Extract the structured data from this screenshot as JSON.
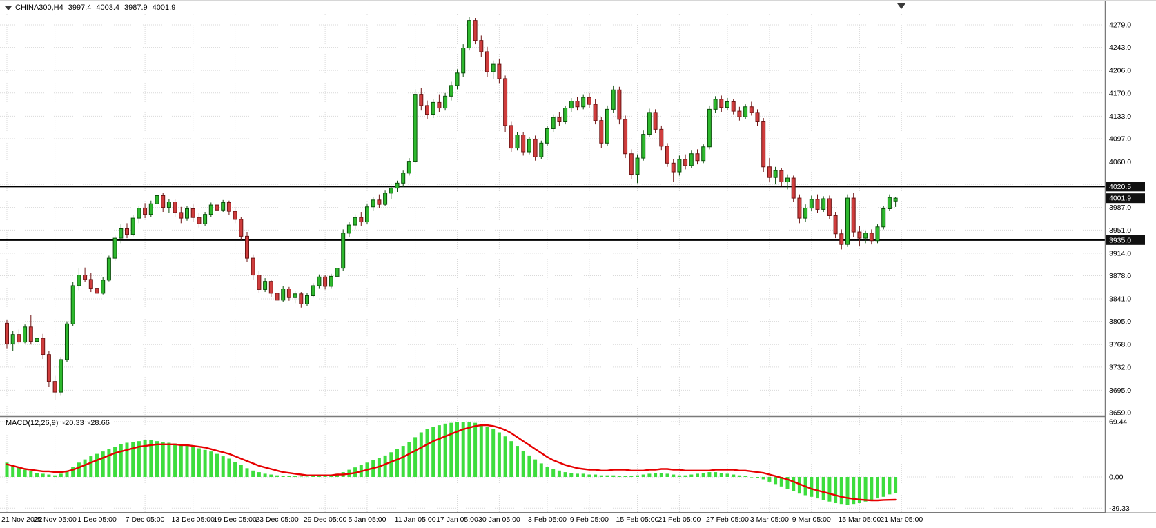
{
  "header": {
    "symbol": "CHINA300,H4",
    "open": "3997.4",
    "high": "4003.4",
    "low": "3987.9",
    "close": "4001.9"
  },
  "macd_panel": {
    "label": "MACD(12,26,9)",
    "main_value": "-20.33",
    "signal_value": "-28.66",
    "ticks": [
      {
        "value": 69.44,
        "label": "69.44"
      },
      {
        "value": 0,
        "label": "0.00"
      },
      {
        "value": -39.33,
        "label": "-39.33"
      }
    ]
  },
  "price_axis": {
    "ticks": [
      {
        "value": 4279,
        "label": "4279.0"
      },
      {
        "value": 4243,
        "label": "4243.0"
      },
      {
        "value": 4206,
        "label": "4206.0"
      },
      {
        "value": 4170,
        "label": "4170.0"
      },
      {
        "value": 4133,
        "label": "4133.0"
      },
      {
        "value": 4097,
        "label": "4097.0"
      },
      {
        "value": 4060,
        "label": "4060.0"
      },
      {
        "value": 4024,
        "label": ""
      },
      {
        "value": 3987,
        "label": "3987.0"
      },
      {
        "value": 3951,
        "label": "3951.0"
      },
      {
        "value": 3914,
        "label": "3914.0"
      },
      {
        "value": 3878,
        "label": "3878.0"
      },
      {
        "value": 3841,
        "label": "3841.0"
      },
      {
        "value": 3805,
        "label": "3805.0"
      },
      {
        "value": 3768,
        "label": "3768.0"
      },
      {
        "value": 3732,
        "label": "3732.0"
      },
      {
        "value": 3695,
        "label": "3695.0"
      },
      {
        "value": 3659,
        "label": "3659.0"
      }
    ],
    "badges": [
      {
        "value": 4020.5,
        "label": "4020.5",
        "type": "hline"
      },
      {
        "value": 4001.9,
        "label": "4001.9",
        "type": "last-price"
      },
      {
        "value": 3935.0,
        "label": "3935.0",
        "type": "hline"
      }
    ]
  },
  "colors": {
    "bull_fill": "#2eb82e",
    "bull_stroke": "#0b4f0b",
    "bear_fill": "#cf3d3d",
    "bear_stroke": "#6e1414",
    "hist": "#3ddd3d",
    "signal": "#e60000",
    "grid": "#d9d9d9",
    "hline": "#000000",
    "badge_bg": "#111111",
    "badge_text": "#ffffff",
    "axis_text": "#000000",
    "separator": "#7a7a7a"
  },
  "chart_data": {
    "type": "candlestick",
    "symbol": "CHINA300",
    "timeframe": "H4",
    "price_axis_range": [
      3659.0,
      4279.0
    ],
    "horizontal_lines": [
      4020.5,
      3935.0
    ],
    "last_price": 4001.9,
    "ohlc": [
      [
        3802,
        3808,
        3762,
        3769
      ],
      [
        3769,
        3790,
        3758,
        3784
      ],
      [
        3784,
        3792,
        3768,
        3772
      ],
      [
        3772,
        3800,
        3770,
        3796
      ],
      [
        3796,
        3815,
        3768,
        3773
      ],
      [
        3773,
        3782,
        3752,
        3778
      ],
      [
        3778,
        3785,
        3745,
        3752
      ],
      [
        3752,
        3758,
        3700,
        3709
      ],
      [
        3709,
        3718,
        3679,
        3692
      ],
      [
        3692,
        3748,
        3686,
        3744
      ],
      [
        3744,
        3805,
        3740,
        3801
      ],
      [
        3801,
        3868,
        3798,
        3862
      ],
      [
        3862,
        3890,
        3855,
        3879
      ],
      [
        3879,
        3891,
        3868,
        3872
      ],
      [
        3872,
        3882,
        3852,
        3858
      ],
      [
        3858,
        3866,
        3843,
        3850
      ],
      [
        3850,
        3876,
        3848,
        3871
      ],
      [
        3871,
        3910,
        3869,
        3906
      ],
      [
        3906,
        3942,
        3902,
        3938
      ],
      [
        3938,
        3960,
        3930,
        3953
      ],
      [
        3953,
        3962,
        3938,
        3944
      ],
      [
        3944,
        3975,
        3941,
        3970
      ],
      [
        3970,
        3990,
        3962,
        3986
      ],
      [
        3986,
        3994,
        3970,
        3976
      ],
      [
        3976,
        3998,
        3972,
        3993
      ],
      [
        3993,
        4013,
        3985,
        4006
      ],
      [
        4006,
        4010,
        3980,
        3987
      ],
      [
        3987,
        4000,
        3978,
        3996
      ],
      [
        3996,
        4001,
        3972,
        3979
      ],
      [
        3979,
        3988,
        3962,
        3970
      ],
      [
        3970,
        3989,
        3966,
        3985
      ],
      [
        3985,
        3992,
        3964,
        3971
      ],
      [
        3971,
        3978,
        3955,
        3961
      ],
      [
        3961,
        3980,
        3958,
        3976
      ],
      [
        3976,
        3995,
        3972,
        3991
      ],
      [
        3991,
        3997,
        3978,
        3983
      ],
      [
        3983,
        3999,
        3980,
        3995
      ],
      [
        3995,
        3998,
        3975,
        3981
      ],
      [
        3981,
        3988,
        3962,
        3968
      ],
      [
        3968,
        3972,
        3935,
        3941
      ],
      [
        3941,
        3948,
        3900,
        3906
      ],
      [
        3906,
        3912,
        3872,
        3879
      ],
      [
        3879,
        3886,
        3850,
        3856
      ],
      [
        3856,
        3874,
        3852,
        3869
      ],
      [
        3869,
        3872,
        3844,
        3850
      ],
      [
        3850,
        3856,
        3826,
        3839
      ],
      [
        3839,
        3862,
        3836,
        3857
      ],
      [
        3857,
        3860,
        3838,
        3843
      ],
      [
        3843,
        3853,
        3834,
        3849
      ],
      [
        3849,
        3852,
        3827,
        3833
      ],
      [
        3833,
        3850,
        3830,
        3846
      ],
      [
        3846,
        3866,
        3843,
        3862
      ],
      [
        3862,
        3880,
        3858,
        3876
      ],
      [
        3876,
        3879,
        3856,
        3861
      ],
      [
        3861,
        3881,
        3858,
        3877
      ],
      [
        3877,
        3895,
        3870,
        3890
      ],
      [
        3890,
        3952,
        3886,
        3946
      ],
      [
        3946,
        3964,
        3940,
        3959
      ],
      [
        3959,
        3976,
        3952,
        3971
      ],
      [
        3971,
        3980,
        3958,
        3964
      ],
      [
        3964,
        3992,
        3960,
        3988
      ],
      [
        3988,
        4004,
        3982,
        3999
      ],
      [
        3999,
        4008,
        3986,
        3992
      ],
      [
        3992,
        4014,
        3989,
        4010
      ],
      [
        4010,
        4022,
        4000,
        4018
      ],
      [
        4018,
        4030,
        4012,
        4026
      ],
      [
        4026,
        4046,
        4020,
        4042
      ],
      [
        4042,
        4066,
        4038,
        4061
      ],
      [
        4061,
        4176,
        4058,
        4168
      ],
      [
        4168,
        4178,
        4142,
        4150
      ],
      [
        4150,
        4158,
        4128,
        4136
      ],
      [
        4136,
        4160,
        4130,
        4155
      ],
      [
        4155,
        4168,
        4140,
        4146
      ],
      [
        4146,
        4170,
        4142,
        4165
      ],
      [
        4165,
        4188,
        4158,
        4182
      ],
      [
        4182,
        4208,
        4176,
        4202
      ],
      [
        4202,
        4248,
        4196,
        4242
      ],
      [
        4242,
        4292,
        4238,
        4286
      ],
      [
        4286,
        4290,
        4248,
        4254
      ],
      [
        4254,
        4262,
        4228,
        4236
      ],
      [
        4236,
        4244,
        4196,
        4204
      ],
      [
        4204,
        4222,
        4192,
        4216
      ],
      [
        4216,
        4224,
        4186,
        4193
      ],
      [
        4193,
        4198,
        4108,
        4118
      ],
      [
        4118,
        4124,
        4076,
        4082
      ],
      [
        4082,
        4108,
        4078,
        4103
      ],
      [
        4103,
        4108,
        4070,
        4076
      ],
      [
        4076,
        4100,
        4072,
        4096
      ],
      [
        4096,
        4102,
        4062,
        4068
      ],
      [
        4068,
        4094,
        4064,
        4090
      ],
      [
        4090,
        4118,
        4086,
        4113
      ],
      [
        4113,
        4136,
        4108,
        4131
      ],
      [
        4131,
        4140,
        4118,
        4124
      ],
      [
        4124,
        4150,
        4120,
        4146
      ],
      [
        4146,
        4162,
        4140,
        4157
      ],
      [
        4157,
        4164,
        4142,
        4148
      ],
      [
        4148,
        4168,
        4144,
        4163
      ],
      [
        4163,
        4170,
        4146,
        4152
      ],
      [
        4152,
        4160,
        4120,
        4126
      ],
      [
        4126,
        4132,
        4082,
        4090
      ],
      [
        4090,
        4150,
        4086,
        4144
      ],
      [
        4144,
        4182,
        4138,
        4175
      ],
      [
        4175,
        4180,
        4120,
        4128
      ],
      [
        4128,
        4134,
        4066,
        4073
      ],
      [
        4073,
        4080,
        4032,
        4040
      ],
      [
        4040,
        4072,
        4026,
        4066
      ],
      [
        4066,
        4110,
        4062,
        4104
      ],
      [
        4104,
        4145,
        4100,
        4139
      ],
      [
        4139,
        4144,
        4106,
        4112
      ],
      [
        4112,
        4118,
        4078,
        4085
      ],
      [
        4085,
        4090,
        4052,
        4058
      ],
      [
        4058,
        4064,
        4028,
        4044
      ],
      [
        4044,
        4070,
        4038,
        4064
      ],
      [
        4064,
        4072,
        4048,
        4054
      ],
      [
        4054,
        4078,
        4050,
        4073
      ],
      [
        4073,
        4080,
        4056,
        4062
      ],
      [
        4062,
        4088,
        4058,
        4084
      ],
      [
        4084,
        4150,
        4080,
        4144
      ],
      [
        4144,
        4165,
        4138,
        4160
      ],
      [
        4160,
        4166,
        4140,
        4147
      ],
      [
        4147,
        4162,
        4142,
        4156
      ],
      [
        4156,
        4160,
        4136,
        4141
      ],
      [
        4141,
        4148,
        4126,
        4132
      ],
      [
        4132,
        4152,
        4128,
        4148
      ],
      [
        4148,
        4156,
        4134,
        4139
      ],
      [
        4139,
        4144,
        4118,
        4124
      ],
      [
        4124,
        4130,
        4044,
        4052
      ],
      [
        4052,
        4066,
        4028,
        4035
      ],
      [
        4035,
        4052,
        4024,
        4046
      ],
      [
        4046,
        4050,
        4022,
        4028
      ],
      [
        4028,
        4040,
        4016,
        4034
      ],
      [
        4034,
        4038,
        3996,
        4002
      ],
      [
        4002,
        4008,
        3962,
        3970
      ],
      [
        3970,
        3992,
        3964,
        3986
      ],
      [
        3986,
        4006,
        3982,
        4000
      ],
      [
        4000,
        4008,
        3978,
        3984
      ],
      [
        3984,
        4005,
        3980,
        4001
      ],
      [
        4001,
        4006,
        3968,
        3974
      ],
      [
        3974,
        3980,
        3938,
        3945
      ],
      [
        3945,
        3952,
        3920,
        3928
      ],
      [
        3928,
        4008,
        3924,
        4002
      ],
      [
        4002,
        4010,
        3940,
        3948
      ],
      [
        3948,
        3958,
        3926,
        3938
      ],
      [
        3938,
        3950,
        3930,
        3946
      ],
      [
        3946,
        3952,
        3928,
        3934
      ],
      [
        3934,
        3960,
        3930,
        3956
      ],
      [
        3956,
        3990,
        3952,
        3985
      ],
      [
        3985,
        4008,
        3982,
        4003
      ],
      [
        3997.4,
        4003.4,
        3987.9,
        4001.9
      ]
    ],
    "x_labels": [
      {
        "index": 0,
        "label": "21 Nov 2022"
      },
      {
        "index": 8,
        "label": "25 Nov 05:00"
      },
      {
        "index": 15,
        "label": "1 Dec 05:00"
      },
      {
        "index": 23,
        "label": "7 Dec 05:00"
      },
      {
        "index": 31,
        "label": "13 Dec 05:00"
      },
      {
        "index": 38,
        "label": "19 Dec 05:00"
      },
      {
        "index": 45,
        "label": "23 Dec 05:00"
      },
      {
        "index": 53,
        "label": "29 Dec 05:00"
      },
      {
        "index": 60,
        "label": "5 Jan 05:00"
      },
      {
        "index": 68,
        "label": "11 Jan 05:00"
      },
      {
        "index": 75,
        "label": "17 Jan 05:00"
      },
      {
        "index": 82,
        "label": "30 Jan 05:00"
      },
      {
        "index": 90,
        "label": "3 Feb 05:00"
      },
      {
        "index": 97,
        "label": "9 Feb 05:00"
      },
      {
        "index": 105,
        "label": "15 Feb 05:00"
      },
      {
        "index": 112,
        "label": "21 Feb 05:00"
      },
      {
        "index": 120,
        "label": "27 Feb 05:00"
      },
      {
        "index": 127,
        "label": "3 Mar 05:00"
      },
      {
        "index": 134,
        "label": "9 Mar 05:00"
      },
      {
        "index": 142,
        "label": "15 Mar 05:00"
      },
      {
        "index": 149,
        "label": "21 Mar 05:00"
      }
    ],
    "indicator": {
      "type": "MACD",
      "params": [
        12,
        26,
        9
      ],
      "range": [
        -39.33,
        69.44
      ],
      "last_values": {
        "main": -20.33,
        "signal": -28.66
      },
      "histogram": [
        18,
        15,
        12,
        9,
        7,
        5,
        4,
        3,
        2,
        4,
        8,
        13,
        18,
        22,
        26,
        29,
        32,
        35,
        38,
        41,
        43,
        44,
        45,
        46,
        46,
        45,
        44,
        43,
        42,
        41,
        40,
        38,
        36,
        34,
        32,
        29,
        26,
        23,
        19,
        15,
        11,
        8,
        6,
        4,
        3,
        2,
        1,
        1,
        1,
        0.5,
        0.5,
        1,
        1,
        2,
        3,
        4,
        6,
        9,
        12,
        15,
        18,
        21,
        24,
        27,
        31,
        35,
        39,
        44,
        50,
        56,
        60,
        63,
        65,
        67,
        68,
        69,
        69.4,
        69,
        68,
        66,
        63,
        60,
        56,
        51,
        45,
        39,
        33,
        27,
        22,
        17,
        13,
        10,
        8,
        6,
        5,
        4,
        4,
        3,
        3,
        2,
        2,
        2,
        1,
        1,
        1,
        2,
        3,
        4,
        5,
        5,
        4,
        3,
        2,
        2,
        3,
        4,
        5,
        6,
        6,
        5,
        4,
        3,
        2,
        1,
        0,
        -1,
        -3,
        -6,
        -9,
        -12,
        -15,
        -18,
        -21,
        -23,
        -25,
        -27,
        -29,
        -31,
        -33,
        -34,
        -35,
        -34,
        -33,
        -31,
        -29,
        -27,
        -25,
        -22,
        -20.33
      ],
      "signal": [
        16,
        14,
        12,
        10,
        9,
        8,
        7,
        7,
        6,
        6,
        7,
        9,
        12,
        15,
        18,
        21,
        24,
        27,
        30,
        32,
        34,
        36,
        38,
        39,
        40,
        41,
        41,
        41,
        41,
        40,
        40,
        39,
        38,
        37,
        35,
        33,
        31,
        29,
        26,
        23,
        20,
        17,
        14,
        12,
        10,
        8,
        6,
        5,
        4,
        3,
        2,
        2,
        2,
        2,
        2,
        3,
        3,
        4,
        5,
        7,
        9,
        11,
        13,
        16,
        19,
        22,
        25,
        29,
        33,
        37,
        41,
        45,
        48,
        51,
        54,
        57,
        60,
        62,
        64,
        65,
        65,
        64,
        62,
        59,
        55,
        50,
        45,
        40,
        35,
        30,
        25,
        21,
        18,
        15,
        13,
        11,
        10,
        9,
        9,
        8,
        8,
        9,
        9,
        9,
        8,
        8,
        8,
        9,
        9,
        10,
        10,
        9,
        9,
        8,
        8,
        8,
        8,
        8,
        9,
        9,
        9,
        9,
        8,
        8,
        7,
        6,
        5,
        3,
        1,
        -1,
        -3,
        -6,
        -9,
        -12,
        -15,
        -17,
        -19,
        -21,
        -23,
        -25,
        -26.5,
        -27.5,
        -28.5,
        -29,
        -29.5,
        -29.5,
        -29,
        -28.8,
        -28.66
      ]
    }
  }
}
